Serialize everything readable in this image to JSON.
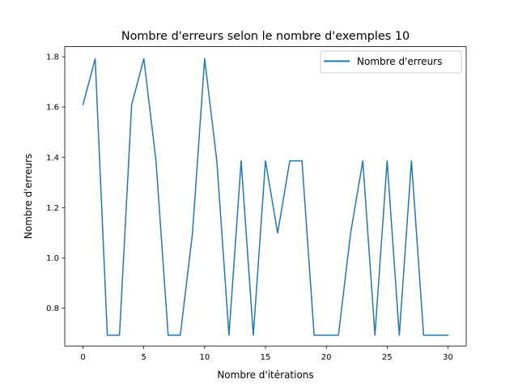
{
  "chart_data": {
    "type": "line",
    "title": "Nombre d'erreurs selon le nombre d'exemples 10",
    "xlabel": "Nombre d'itérations",
    "ylabel": "Nombre d'erreurs",
    "xlim": [
      -1.5,
      31.5
    ],
    "ylim": [
      0.65,
      1.84
    ],
    "xticks": [
      0,
      5,
      10,
      15,
      20,
      25,
      30
    ],
    "xtick_labels": [
      "0",
      "5",
      "10",
      "15",
      "20",
      "25",
      "30"
    ],
    "yticks": [
      0.8,
      1.0,
      1.2,
      1.4,
      1.6,
      1.8
    ],
    "ytick_labels": [
      "0.8",
      "1.0",
      "1.2",
      "1.4",
      "1.6",
      "1.8"
    ],
    "grid": false,
    "legend_position": "top-right",
    "series": [
      {
        "name": "Nombre d'erreurs",
        "color": "#1f77b4",
        "x": [
          0,
          1,
          2,
          3,
          4,
          5,
          6,
          7,
          8,
          9,
          10,
          11,
          12,
          13,
          14,
          15,
          16,
          17,
          18,
          19,
          20,
          21,
          22,
          23,
          24,
          25,
          26,
          27,
          28,
          29,
          30
        ],
        "values": [
          1.609,
          1.792,
          0.693,
          0.693,
          1.609,
          1.792,
          1.386,
          0.693,
          0.693,
          1.099,
          1.792,
          1.386,
          0.693,
          1.386,
          0.693,
          1.386,
          1.099,
          1.386,
          1.386,
          0.693,
          0.693,
          0.693,
          1.099,
          1.386,
          0.693,
          1.386,
          0.693,
          1.386,
          0.693,
          0.693,
          0.693
        ]
      }
    ]
  }
}
